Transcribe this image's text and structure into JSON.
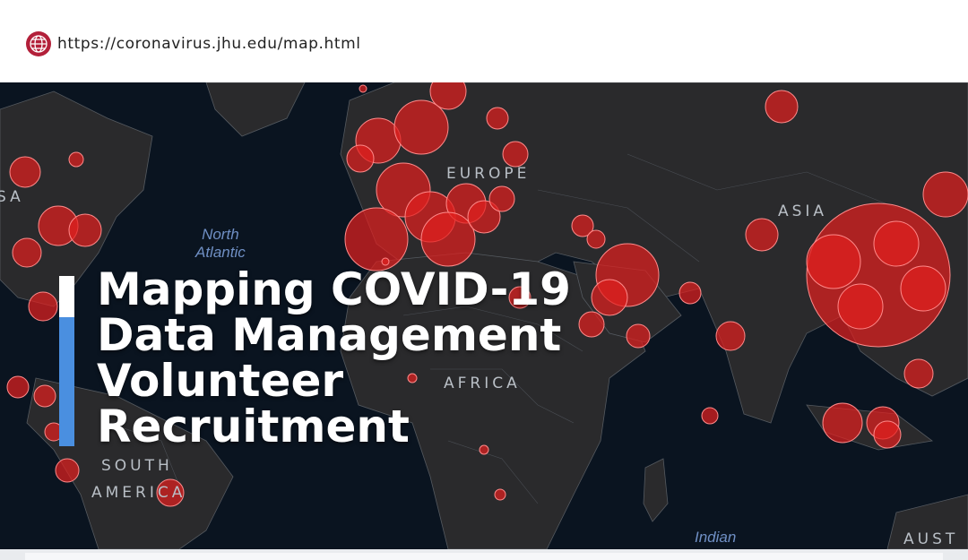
{
  "url_bar": {
    "icon": "globe-icon",
    "url": "https://coronavirus.jhu.edu/map.html",
    "icon_color": "#b3203a"
  },
  "map": {
    "labels": {
      "europe": "EUROPE",
      "asia": "ASIA",
      "africa": "AFRICA",
      "south_america_1": "SOUTH",
      "south_america_2": "AMERICA",
      "north_america_partial": "SA",
      "australia_partial": "AUST"
    },
    "ocean_labels": {
      "north_atlantic_1": "North",
      "north_atlantic_2": "Atlantic",
      "indian": "Indian"
    },
    "colors": {
      "ocean": "#0a1420",
      "land": "#2a2a2c",
      "case_circle": "#e0201e"
    }
  },
  "headline": {
    "lines": [
      "Mapping COVID-19",
      "Data Management",
      "Volunteer",
      "Recruitment"
    ],
    "accent_color": "#4a8fe0"
  }
}
